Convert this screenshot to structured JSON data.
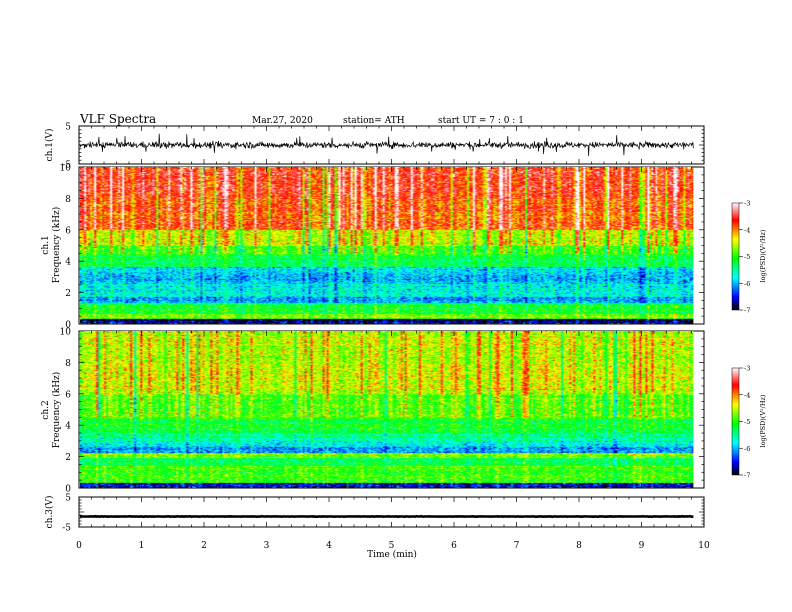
{
  "header": {
    "title": "VLF  Spectra",
    "date": "Mar.27, 2020",
    "station": "station= ATH",
    "start": "start  UT  =    7  : 0   : 1"
  },
  "chart_data": [
    {
      "type": "line",
      "id": "ch1-waveform",
      "ylabel": "ch.1(V)",
      "ylim": [
        -5,
        5
      ],
      "yticks": [
        "5",
        "-5"
      ],
      "xlim": [
        0,
        10
      ],
      "baseline": 0,
      "amplitude_typical": 0.8,
      "amplitude_peak": 3.0
    },
    {
      "type": "heatmap",
      "id": "ch1-spectrogram",
      "ylabel": "Frequency  (kHz)",
      "channel_label": "ch.1",
      "ylim": [
        0,
        10
      ],
      "yticks": [
        "0",
        "2",
        "4",
        "6",
        "8",
        "10"
      ],
      "xlim": [
        0,
        10
      ],
      "data_extent_min": 9.83,
      "bands_khz_to_log_psd": [
        [
          0.0,
          0.3,
          -6.8
        ],
        [
          0.3,
          0.6,
          -4.8
        ],
        [
          0.6,
          0.9,
          -5.2
        ],
        [
          0.9,
          1.3,
          -5.3
        ],
        [
          1.3,
          1.7,
          -6.2
        ],
        [
          1.7,
          2.1,
          -5.8
        ],
        [
          2.1,
          2.6,
          -5.9
        ],
        [
          2.6,
          3.1,
          -6.1
        ],
        [
          3.1,
          3.6,
          -6.0
        ],
        [
          3.6,
          4.3,
          -5.3
        ],
        [
          4.3,
          5.0,
          -5.0
        ],
        [
          5.0,
          6.0,
          -4.5
        ],
        [
          6.0,
          8.0,
          -3.9
        ],
        [
          8.0,
          10.0,
          -3.7
        ]
      ],
      "colorbar": {
        "label": "log(PSD)(V²/Hz)",
        "ticks": [
          "-3",
          "-4",
          "-5",
          "-6",
          "-7"
        ],
        "range": [
          -7,
          -3
        ]
      }
    },
    {
      "type": "heatmap",
      "id": "ch2-spectrogram",
      "ylabel": "Frequency  (kHz)",
      "channel_label": "ch.2",
      "ylim": [
        0,
        10
      ],
      "yticks": [
        "0",
        "2",
        "4",
        "6",
        "8",
        "10"
      ],
      "xlim": [
        0,
        10
      ],
      "data_extent_min": 9.83,
      "bands_khz_to_log_psd": [
        [
          0.0,
          0.3,
          -6.6
        ],
        [
          0.3,
          0.8,
          -5.0
        ],
        [
          0.8,
          1.4,
          -5.0
        ],
        [
          1.4,
          1.9,
          -5.3
        ],
        [
          1.9,
          2.2,
          -4.8
        ],
        [
          2.2,
          2.6,
          -6.2
        ],
        [
          2.6,
          3.0,
          -5.8
        ],
        [
          3.0,
          3.5,
          -5.6
        ],
        [
          3.5,
          4.4,
          -5.2
        ],
        [
          4.4,
          6.0,
          -4.9
        ],
        [
          6.0,
          8.0,
          -4.5
        ],
        [
          8.0,
          10.0,
          -4.6
        ]
      ],
      "colorbar": {
        "label": "log(PSD)(V²/Hz)",
        "ticks": [
          "-3",
          "-4",
          "-5",
          "-6",
          "-7"
        ],
        "range": [
          -7,
          -3
        ]
      }
    },
    {
      "type": "line",
      "id": "ch3-waveform",
      "ylabel": "ch.3(V)",
      "ylim": [
        -5,
        5
      ],
      "yticks": [
        "5",
        "-5"
      ],
      "xlim": [
        0,
        10
      ],
      "baseline": -1.5,
      "amplitude_typical": 0.15
    }
  ],
  "xaxis": {
    "label": "Time  (min)",
    "ticks": [
      "0",
      "1",
      "2",
      "3",
      "4",
      "5",
      "6",
      "7",
      "8",
      "9",
      "10"
    ],
    "range": [
      0,
      10
    ]
  },
  "colors": {
    "colormap": [
      "#000000",
      "#0000ff",
      "#00ffff",
      "#00ff00",
      "#ffff00",
      "#ff0000",
      "#ffffff"
    ],
    "waveform": "#000000"
  }
}
